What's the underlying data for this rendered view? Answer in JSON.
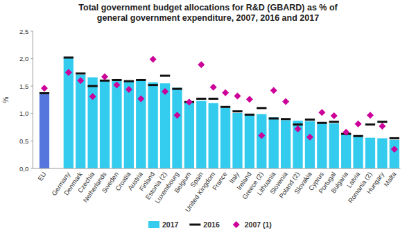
{
  "chart_data": {
    "type": "bar",
    "title": "Total government budget allocations for R&D (GBARD) as % of general government expenditure, 2007, 2016 and 2017",
    "y_label": "%",
    "categories": [
      "EU",
      null,
      "Germany",
      "Denmark",
      "Czechia",
      "Netherlands",
      "Sweden",
      "Croatia",
      "Austria",
      "Finland",
      "Estonia (2)",
      "Luxembourg",
      "Belgium",
      "Spain",
      "United Kingdom",
      "France",
      "Italy",
      "Ireland",
      "Greece (2)",
      "Lithuania",
      "Slovenia",
      "Poland (2)",
      "Slovakia",
      "Cyprus",
      "Portugal",
      "Bulgaria",
      "Latvia",
      "Romania (2)",
      "Hungary",
      "Malta"
    ],
    "series": [
      {
        "name": "2017",
        "type": "bar",
        "color": "#33ccee",
        "colors": [
          "#5577dd",
          "#33ccee",
          "#33ccee",
          "#33ccee",
          "#33ccee",
          "#33ccee",
          "#33ccee",
          "#33ccee",
          "#33ccee",
          "#33ccee",
          "#33ccee",
          "#33ccee",
          "#33ccee",
          "#33ccee",
          "#33ccee",
          "#33ccee",
          "#33ccee",
          "#33ccee",
          "#33ccee",
          "#33ccee",
          "#33ccee",
          "#33ccee",
          "#33ccee",
          "#33ccee",
          "#33ccee",
          "#33ccee",
          "#33ccee",
          "#33ccee",
          "#33ccee",
          "#33ccee"
        ],
        "values": [
          1.35,
          null,
          2.01,
          1.71,
          1.66,
          1.61,
          1.59,
          1.58,
          1.6,
          1.57,
          1.55,
          1.47,
          1.2,
          1.23,
          1.19,
          1.1,
          1.01,
          0.99,
          0.99,
          0.93,
          0.88,
          0.87,
          0.86,
          0.82,
          0.82,
          0.63,
          0.58,
          0.56,
          0.55,
          0.52
        ]
      },
      {
        "name": "2016",
        "type": "scatter",
        "marker": "dash",
        "color": "#111111",
        "values": [
          1.37,
          null,
          2.02,
          1.73,
          1.5,
          1.6,
          1.61,
          1.59,
          1.61,
          1.52,
          1.69,
          1.45,
          1.21,
          1.27,
          1.27,
          1.12,
          1.04,
          0.98,
          1.1,
          0.91,
          0.9,
          0.8,
          0.89,
          0.83,
          0.85,
          0.63,
          0.59,
          0.8,
          0.85,
          0.55
        ]
      },
      {
        "name": "2007 (1)",
        "type": "scatter",
        "marker": "diamond",
        "color": "#cc0099",
        "values": [
          1.46,
          null,
          1.75,
          1.6,
          1.31,
          1.67,
          1.52,
          1.44,
          1.27,
          1.99,
          1.4,
          0.97,
          1.21,
          1.89,
          1.48,
          1.38,
          1.32,
          1.26,
          0.6,
          1.42,
          1.22,
          0.72,
          0.57,
          1.02,
          0.96,
          0.66,
          0.81,
          0.97,
          0.77,
          0.35
        ]
      }
    ],
    "ylim": [
      0,
      2.5
    ],
    "yticks": [
      {
        "value": 0,
        "label": "0,0"
      },
      {
        "value": 0.5,
        "label": "0,5"
      },
      {
        "value": 1,
        "label": "1,0"
      },
      {
        "value": 1.5,
        "label": "1,5"
      },
      {
        "value": 2,
        "label": "2,0"
      },
      {
        "value": 2.5,
        "label": "2,5"
      }
    ],
    "grid": false,
    "legend": "bottom"
  }
}
